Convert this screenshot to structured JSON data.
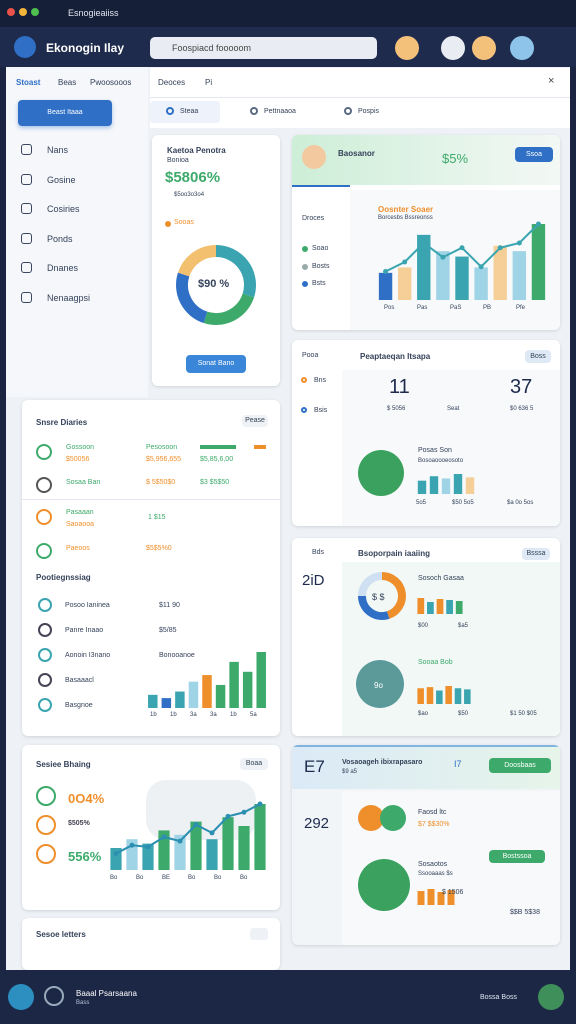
{
  "window": {
    "title": "Esnogieaiiss"
  },
  "header": {
    "brand": "Ekonogin Ilay",
    "search": "Foospiacd fooooom"
  },
  "sidebar": {
    "tabs": [
      "Stoast",
      "Beas",
      "Pwoosooos"
    ],
    "button": "Beast Itaaa",
    "nav": [
      "Nans",
      "Gosine",
      "Cosiries",
      "Ponds",
      "Dnanes",
      "Nenaagpsi"
    ]
  },
  "top_panel": {
    "tabs": [
      "Deoces",
      "Pi"
    ],
    "subtabs": [
      "Steaa",
      "Pettnaaoa",
      "Pospis"
    ]
  },
  "summary_card": {
    "title": "Kaetoa Penotra",
    "subtitle": "Bonioa",
    "value": "$5806%",
    "note": "$5oo3o3o4",
    "legend": "Sooas",
    "donut_label": "$90 %",
    "donut_values": [
      30,
      25,
      25,
      20
    ],
    "button": "Sonat Bano"
  },
  "growth_card": {
    "title": "Baosanor",
    "value": "$5%",
    "button": "Ssoa",
    "labels": [
      "Droces",
      "Soao",
      "Bosts",
      "Bsts"
    ],
    "chart_title": "Oosnter Soaer",
    "chart_subtitle": "Borcesbs Bssreonss",
    "bars": [
      25,
      30,
      60,
      45,
      40,
      30,
      50,
      45,
      70
    ],
    "line": [
      30,
      40,
      60,
      45,
      55,
      35,
      55,
      60,
      80
    ],
    "categories": [
      "Pos",
      "Pas",
      "PaS",
      "PB",
      "Pfe"
    ]
  },
  "stats_card": {
    "tag": "Pooa",
    "title": "Peaptaeqan Itsapa",
    "button": "Boss",
    "items": [
      "Bns",
      "Bsis"
    ],
    "value_a": "11",
    "value_b": "37",
    "note_a": "$ 5056",
    "note_a2": "Seat",
    "note_b": "$0 636 5",
    "sub_title": "Posas Son",
    "sub_note": "Bosoaoooeosoto",
    "bars": [
      60,
      80,
      70,
      90,
      75
    ],
    "labels": [
      "5o5",
      "$50 5o5",
      "$a 0o 5os"
    ]
  },
  "list_card": {
    "title": "Snsre Diaries",
    "button": "Pease",
    "rows": [
      [
        "Gossoon",
        "$50056",
        "Pesosoon",
        "$5,956,655",
        "$5,85,6,00"
      ],
      [
        "Sosaa Ban",
        "$ 5$50$0",
        "$3 $5$50"
      ],
      [
        "Pasaaan",
        "Saoaooa",
        "1 $15"
      ],
      [
        "Paeoos",
        "$5$5%0"
      ]
    ],
    "section": "Pootiegnssiag",
    "items": [
      [
        "Posoo Ianinea",
        "$11 90"
      ],
      [
        "Panre Inaao",
        "$5/85"
      ],
      [
        "Aonoin I3nano",
        "Bonooanoe"
      ],
      [
        "Basaaacl"
      ],
      [
        "Basgnoe"
      ]
    ],
    "bars": [
      20,
      15,
      25,
      40,
      50,
      35,
      70,
      55,
      85
    ],
    "labels": [
      "1b",
      "1b",
      "3a",
      "3a",
      "1b",
      "5a"
    ]
  },
  "budget_card": {
    "tag": "Bds",
    "title": "Bsoporpain iaaiing",
    "button": "Bsssa",
    "value": "2iD",
    "donut_label": "$ $",
    "donut_values": [
      45,
      30,
      25
    ],
    "sub1": "Sosoch Gasaa",
    "bars1": [
      80,
      60,
      75,
      70,
      65
    ],
    "labels1": [
      "$00",
      "$a5"
    ],
    "sub2": "Sooaa Bob",
    "sub2_icon": "9o",
    "bars2": [
      70,
      75,
      60,
      80,
      70,
      65
    ],
    "labels2": [
      "$ao",
      "$50",
      "$1 50 $05"
    ]
  },
  "sales_card": {
    "title": "Sesiee Bhaing",
    "button": "Boaa",
    "values": [
      "0O4%",
      "$505%",
      "556%"
    ],
    "bars": [
      25,
      35,
      30,
      45,
      40,
      55,
      35,
      60,
      50,
      75
    ],
    "line": [
      20,
      30,
      28,
      40,
      35,
      55,
      45,
      65,
      70,
      80
    ],
    "labels": [
      "Bo",
      "Bo",
      "BE",
      "Bo",
      "Bo",
      "Bo"
    ]
  },
  "team_card": {
    "value": "E7",
    "title": "Vosaoageh ibixrapasaro",
    "subtitle": "$9 a5",
    "tag": "I7",
    "button": "Doosbaas",
    "value2": "292",
    "name": "Faosd ltc",
    "amount": "$7 $$30%",
    "sub_title": "Sosaotos",
    "sub_note": "Ssooaaas $s",
    "sub_button": "Bostssoa",
    "bars": [
      70,
      80,
      65,
      75
    ],
    "labels": [
      "$ 1506",
      "$$B 5$38"
    ]
  },
  "letters_card": {
    "title": "Sesoe letters"
  },
  "footer": {
    "title": "Baaal Psarsaana",
    "subtitle": "Bass",
    "status": "Bossa Boss"
  }
}
